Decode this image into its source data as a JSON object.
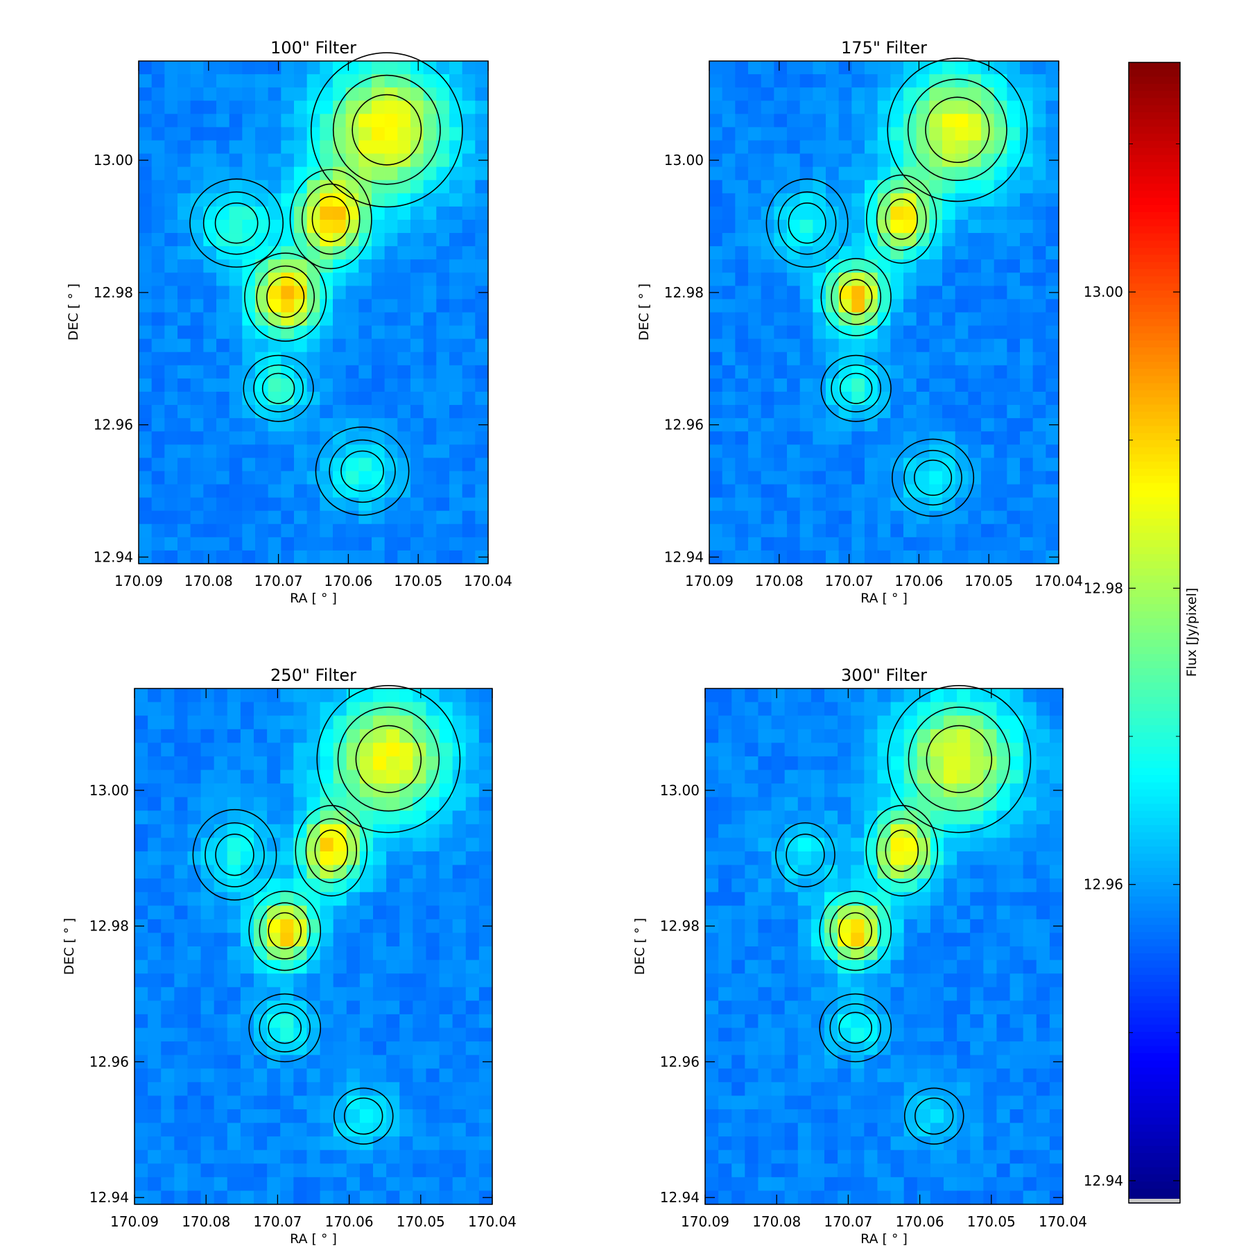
{
  "chart_data": {
    "type": "heatmap",
    "panels": [
      {
        "title": "100\" Filter",
        "xlabel": "RA [ ° ]",
        "ylabel": "DEC [ ° ]",
        "xlim": [
          170.09,
          170.04
        ],
        "ylim": [
          12.939,
          13.015
        ],
        "xticks": [
          "170.09",
          "170.08",
          "170.07",
          "170.06",
          "170.05",
          "170.04"
        ],
        "yticks": [
          "12.94",
          "12.96",
          "12.98",
          "13.00"
        ],
        "sources": [
          {
            "ra": 170.0545,
            "dec": 13.0046,
            "peak": 12.988,
            "sx": 0.0065,
            "sy": 0.007
          },
          {
            "ra": 170.0625,
            "dec": 12.9911,
            "peak": 12.99,
            "sx": 0.0035,
            "sy": 0.0045
          },
          {
            "ra": 170.069,
            "dec": 12.9793,
            "peak": 12.993,
            "sx": 0.0035,
            "sy": 0.004
          },
          {
            "ra": 170.076,
            "dec": 12.9905,
            "peak": 12.971,
            "sx": 0.004,
            "sy": 0.004
          },
          {
            "ra": 170.07,
            "dec": 12.9655,
            "peak": 12.972,
            "sx": 0.003,
            "sy": 0.003
          },
          {
            "ra": 170.058,
            "dec": 12.953,
            "peak": 12.969,
            "sx": 0.004,
            "sy": 0.004
          }
        ]
      },
      {
        "title": "175\" Filter",
        "xlabel": "RA [ ° ]",
        "ylabel": "DEC [ ° ]",
        "xlim": [
          170.09,
          170.04
        ],
        "ylim": [
          12.939,
          13.015
        ],
        "xticks": [
          "170.09",
          "170.08",
          "170.07",
          "170.06",
          "170.05",
          "170.04"
        ],
        "yticks": [
          "12.94",
          "12.96",
          "12.98",
          "13.00"
        ],
        "sources": [
          {
            "ra": 170.0545,
            "dec": 13.0046,
            "peak": 12.986,
            "sx": 0.006,
            "sy": 0.0065
          },
          {
            "ra": 170.0625,
            "dec": 12.9911,
            "peak": 12.988,
            "sx": 0.003,
            "sy": 0.004
          },
          {
            "ra": 170.069,
            "dec": 12.9793,
            "peak": 12.992,
            "sx": 0.003,
            "sy": 0.0035
          },
          {
            "ra": 170.076,
            "dec": 12.9905,
            "peak": 12.968,
            "sx": 0.0035,
            "sy": 0.004
          },
          {
            "ra": 170.069,
            "dec": 12.9655,
            "peak": 12.97,
            "sx": 0.003,
            "sy": 0.003
          },
          {
            "ra": 170.058,
            "dec": 12.952,
            "peak": 12.967,
            "sx": 0.0035,
            "sy": 0.0035
          }
        ]
      },
      {
        "title": "250\" Filter",
        "xlabel": "RA [ ° ]",
        "ylabel": "DEC [ ° ]",
        "xlim": [
          170.09,
          170.04
        ],
        "ylim": [
          12.939,
          13.015
        ],
        "xticks": [
          "170.09",
          "170.08",
          "170.07",
          "170.06",
          "170.05",
          "170.04"
        ],
        "yticks": [
          "12.94",
          "12.96",
          "12.98",
          "13.00"
        ],
        "sources": [
          {
            "ra": 170.0545,
            "dec": 13.0046,
            "peak": 12.986,
            "sx": 0.006,
            "sy": 0.0065
          },
          {
            "ra": 170.0625,
            "dec": 12.9911,
            "peak": 12.989,
            "sx": 0.003,
            "sy": 0.004
          },
          {
            "ra": 170.069,
            "dec": 12.9793,
            "peak": 12.992,
            "sx": 0.003,
            "sy": 0.0035
          },
          {
            "ra": 170.076,
            "dec": 12.9905,
            "peak": 12.968,
            "sx": 0.0035,
            "sy": 0.004
          },
          {
            "ra": 170.069,
            "dec": 12.965,
            "peak": 12.969,
            "sx": 0.003,
            "sy": 0.003
          },
          {
            "ra": 170.058,
            "dec": 12.952,
            "peak": 12.966,
            "sx": 0.0035,
            "sy": 0.0035
          }
        ]
      },
      {
        "title": "300\" Filter",
        "xlabel": "RA [ ° ]",
        "ylabel": "DEC [ ° ]",
        "xlim": [
          170.09,
          170.04
        ],
        "ylim": [
          12.939,
          13.015
        ],
        "xticks": [
          "170.09",
          "170.08",
          "170.07",
          "170.06",
          "170.05",
          "170.04"
        ],
        "yticks": [
          "12.94",
          "12.96",
          "12.98",
          "13.00"
        ],
        "sources": [
          {
            "ra": 170.0545,
            "dec": 13.0046,
            "peak": 12.985,
            "sx": 0.006,
            "sy": 0.0065
          },
          {
            "ra": 170.0625,
            "dec": 12.9911,
            "peak": 12.988,
            "sx": 0.003,
            "sy": 0.004
          },
          {
            "ra": 170.069,
            "dec": 12.9793,
            "peak": 12.991,
            "sx": 0.003,
            "sy": 0.0035
          },
          {
            "ra": 170.076,
            "dec": 12.9905,
            "peak": 12.966,
            "sx": 0.0035,
            "sy": 0.004
          },
          {
            "ra": 170.069,
            "dec": 12.965,
            "peak": 12.968,
            "sx": 0.003,
            "sy": 0.003
          },
          {
            "ra": 170.058,
            "dec": 12.952,
            "peak": 12.964,
            "sx": 0.0035,
            "sy": 0.0035
          }
        ]
      }
    ],
    "colorbar": {
      "label": "Flux [Jy/pixel]",
      "colormap": "jet",
      "range": [
        12.9385,
        13.0155
      ],
      "ticks": [
        "12.94",
        "12.96",
        "12.98",
        "13.00"
      ],
      "background_level": 12.958,
      "cap_color": "#c8c8c8"
    },
    "contour_color": "#000000",
    "grid": false
  }
}
